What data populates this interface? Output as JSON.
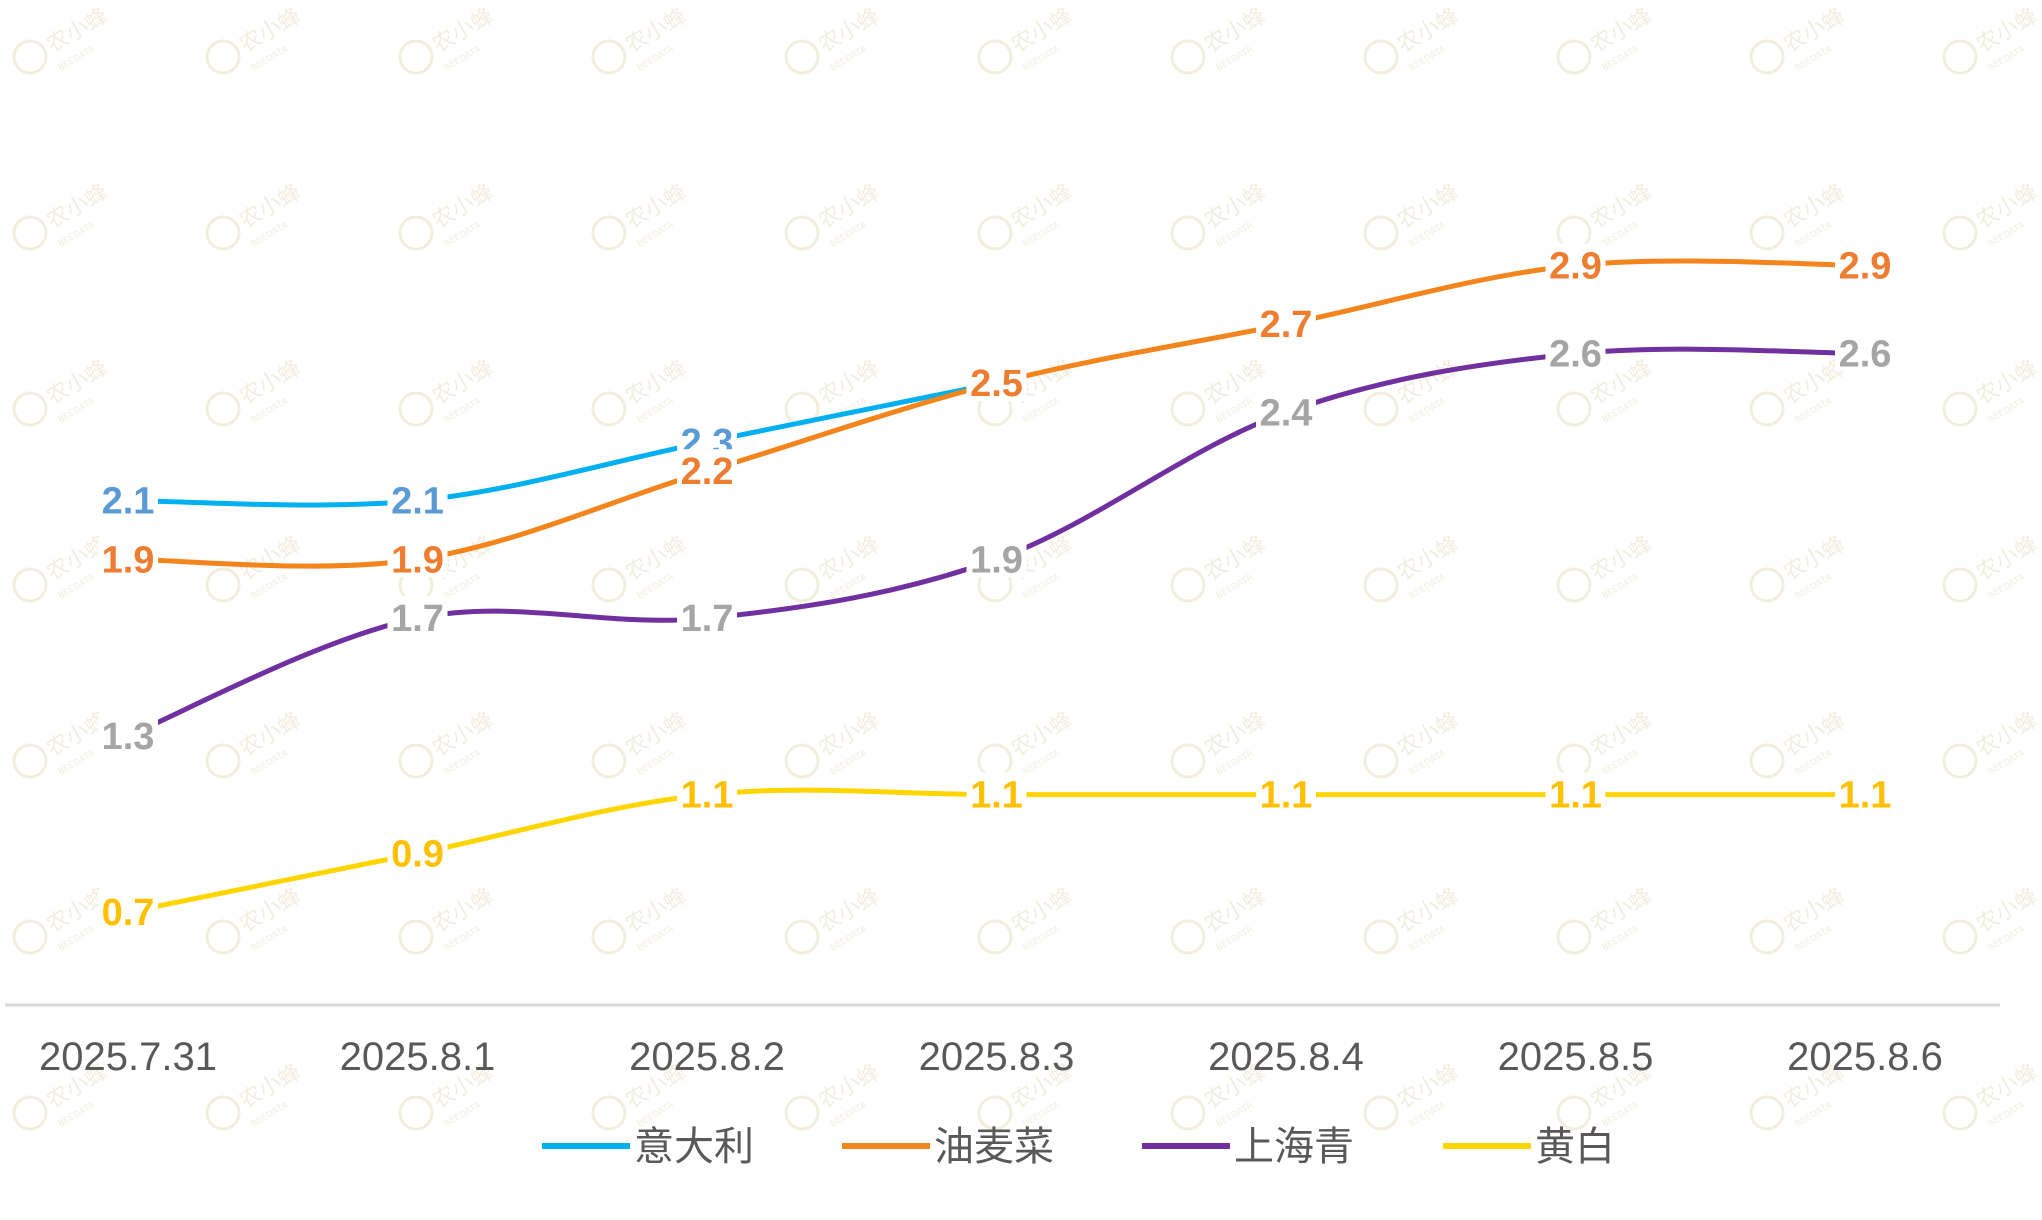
{
  "chart_data": {
    "type": "line",
    "title": "",
    "xlabel": "",
    "ylabel": "",
    "categories": [
      "2025.7.31",
      "2025.8.1",
      "2025.8.2",
      "2025.8.3",
      "2025.8.4",
      "2025.8.5",
      "2025.8.6"
    ],
    "ylim": [
      0,
      3.2
    ],
    "grid": false,
    "legend_position": "bottom",
    "series": [
      {
        "name": "意大利",
        "color": "#00B0F0",
        "label_color": "#5B9BD5",
        "values": [
          2.1,
          2.1,
          2.3,
          2.5,
          null,
          null,
          null
        ]
      },
      {
        "name": "油麦菜",
        "color": "#F4841C",
        "label_color": "#ED7D31",
        "values": [
          1.9,
          1.9,
          2.2,
          2.5,
          2.7,
          2.9,
          2.9
        ]
      },
      {
        "name": "上海青",
        "color": "#7030A0",
        "label_color": "#A5A5A5",
        "values": [
          1.3,
          1.7,
          1.7,
          1.9,
          2.4,
          2.6,
          2.6
        ]
      },
      {
        "name": "黄白",
        "color": "#FFD500",
        "label_color": "#FFC000",
        "values": [
          0.7,
          0.9,
          1.1,
          1.1,
          1.1,
          1.1,
          1.1
        ]
      }
    ]
  },
  "watermark": {
    "text": "农小蜂",
    "subtext": "BEEDATA"
  }
}
